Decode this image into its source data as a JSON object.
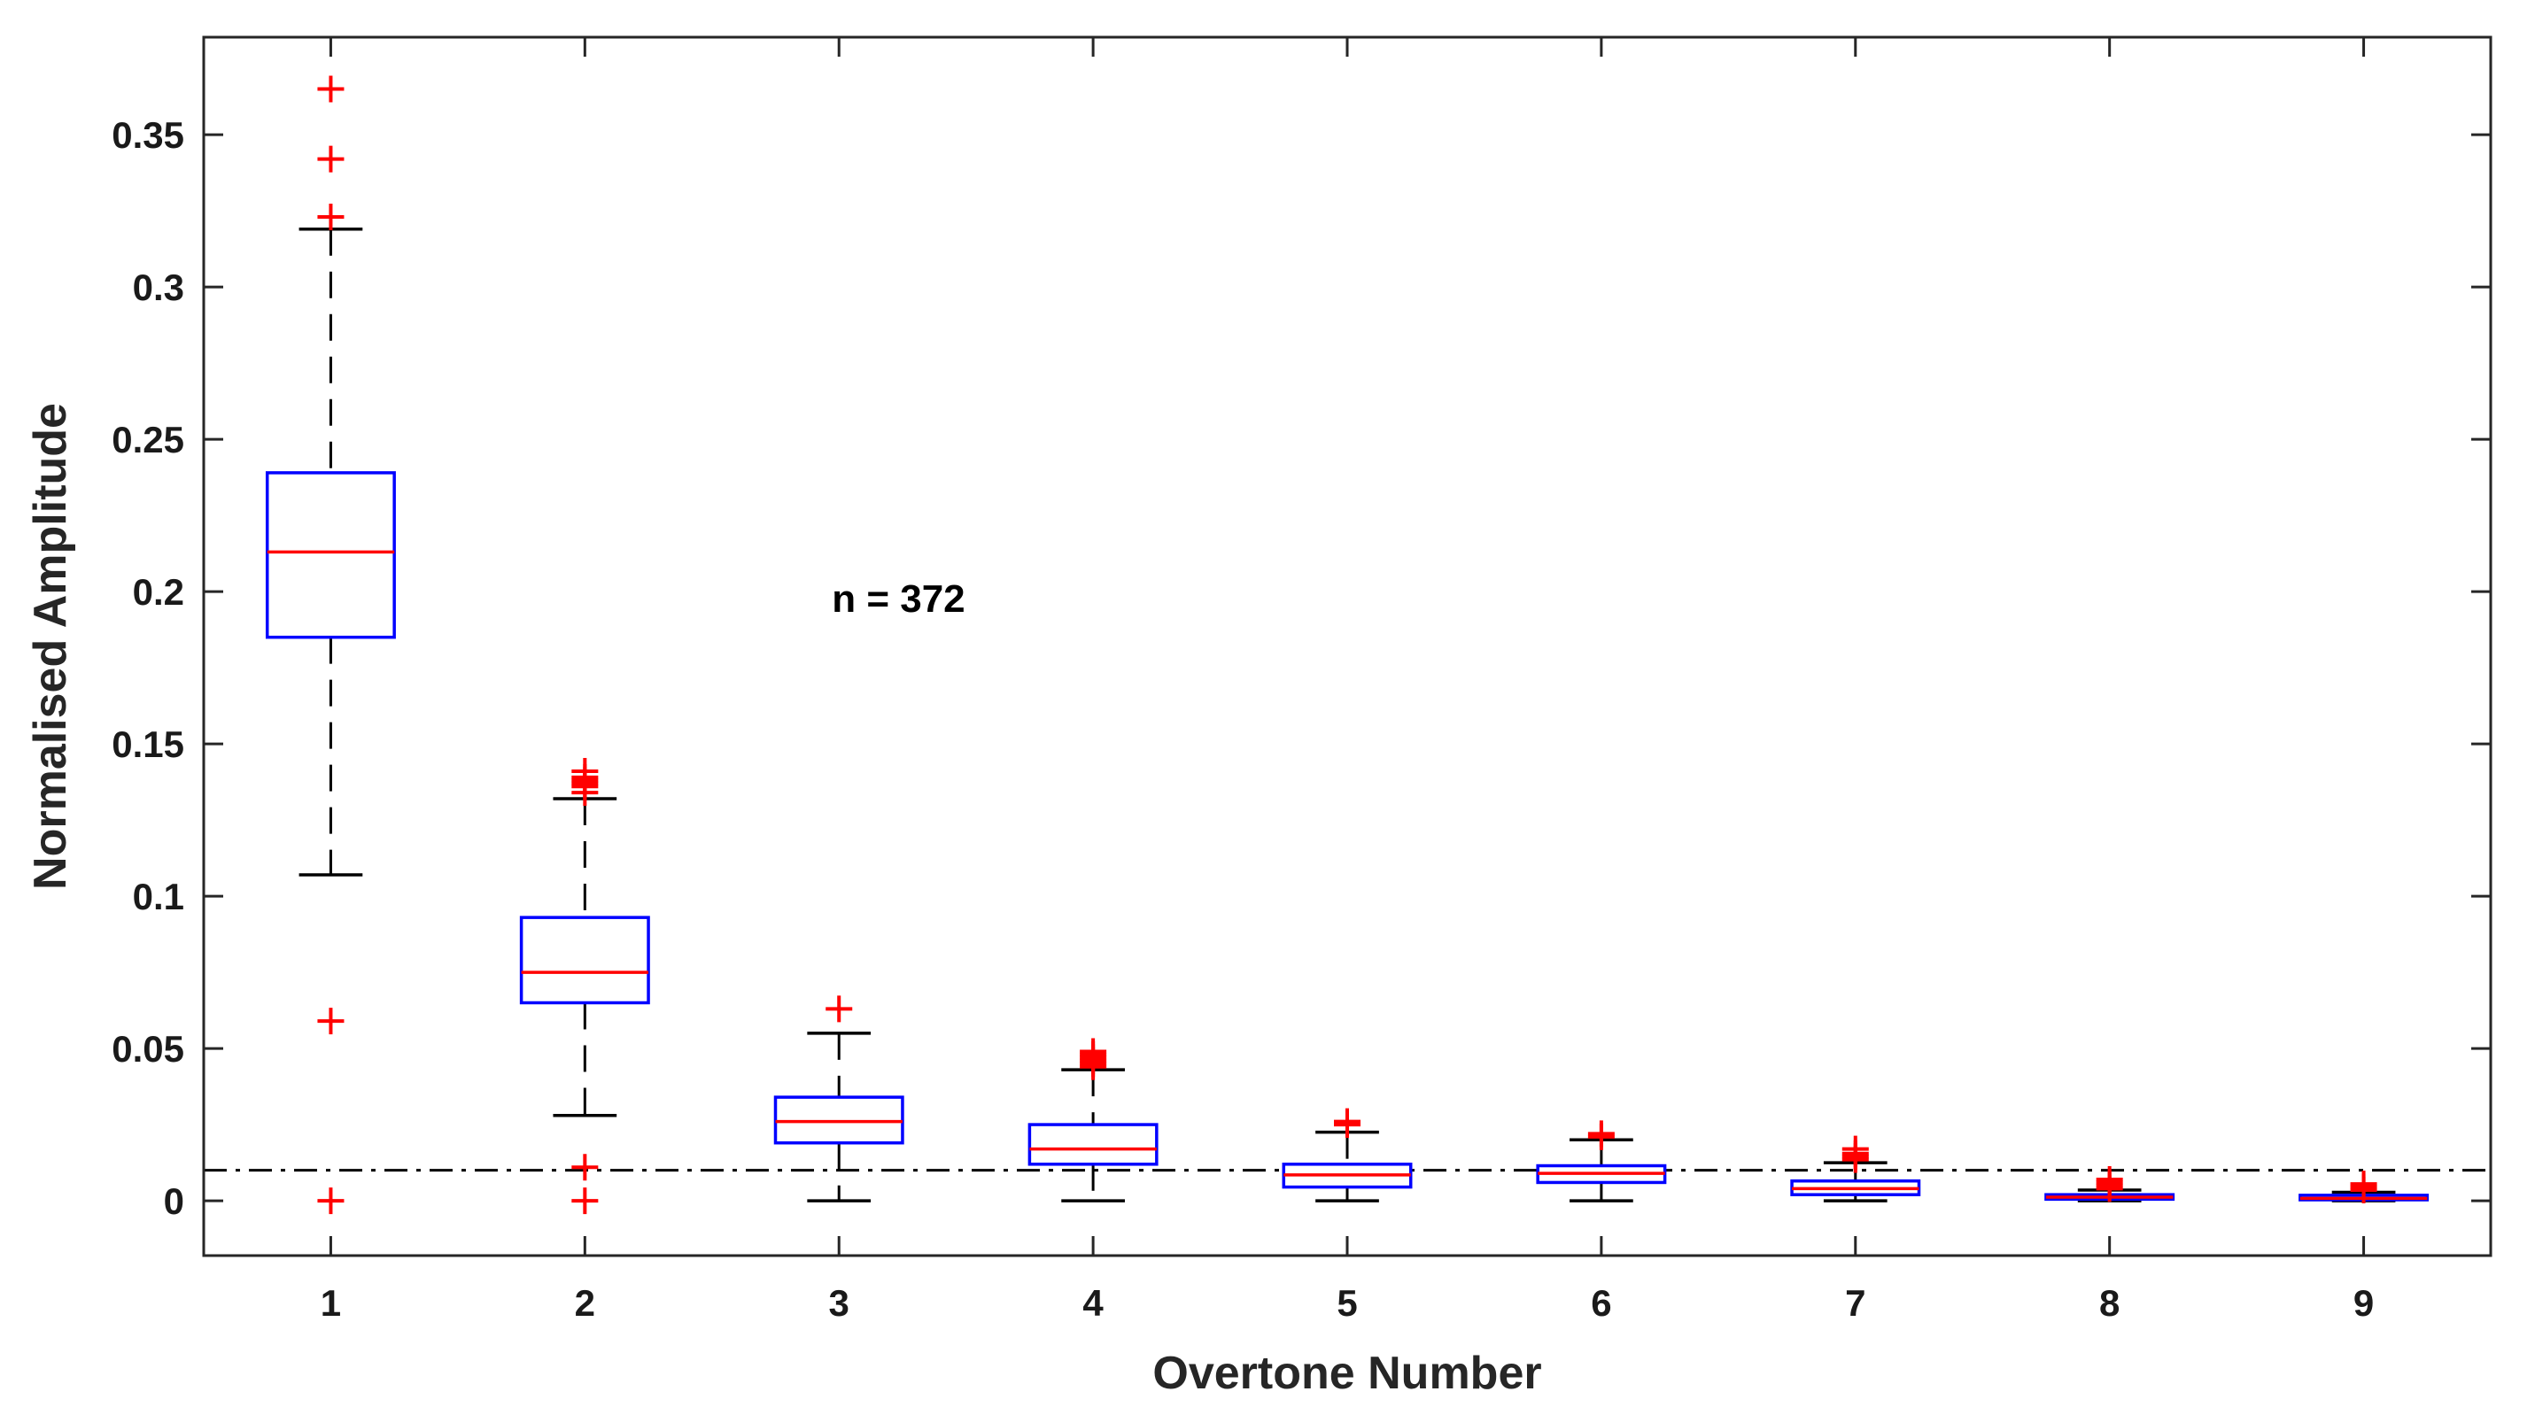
{
  "chart_data": {
    "type": "box",
    "xlabel": "Overtone Number",
    "ylabel": "Normalised Amplitude",
    "xlim": [
      0.5,
      9.5
    ],
    "ylim": [
      -0.018,
      0.382
    ],
    "categories": [
      "1",
      "2",
      "3",
      "4",
      "5",
      "6",
      "7",
      "8",
      "9"
    ],
    "y_ticks": [
      0,
      0.05,
      0.1,
      0.15,
      0.2,
      0.25,
      0.3,
      0.35
    ],
    "y_tick_labels": [
      "0",
      "0.05",
      "0.1",
      "0.15",
      "0.2",
      "0.25",
      "0.3",
      "0.35"
    ],
    "reference_line": {
      "y": 0.01,
      "style": "dash-dot",
      "color": "#000000"
    },
    "annotation": {
      "text": "n = 372",
      "x": 3.0,
      "y": 0.198
    },
    "box_color": "#0000ff",
    "median_color": "#ff0000",
    "outlier_color": "#ff0000",
    "whisker_color": "#000000",
    "boxes": [
      {
        "x": 1,
        "q1": 0.185,
        "median": 0.213,
        "q3": 0.239,
        "whisker_low": 0.107,
        "whisker_high": 0.319,
        "outliers": [
          0.365,
          0.342,
          0.323,
          0.059,
          0.0
        ]
      },
      {
        "x": 2,
        "q1": 0.065,
        "median": 0.075,
        "q3": 0.093,
        "whisker_low": 0.028,
        "whisker_high": 0.132,
        "outliers": [
          0.134,
          0.136,
          0.137,
          0.138,
          0.139,
          0.141,
          0.011,
          0.0
        ]
      },
      {
        "x": 3,
        "q1": 0.019,
        "median": 0.026,
        "q3": 0.034,
        "whisker_low": 0.0,
        "whisker_high": 0.055,
        "outliers": [
          0.063
        ]
      },
      {
        "x": 4,
        "q1": 0.012,
        "median": 0.017,
        "q3": 0.025,
        "whisker_low": 0.0,
        "whisker_high": 0.043,
        "outliers": [
          0.044,
          0.045,
          0.046,
          0.047,
          0.048,
          0.049
        ]
      },
      {
        "x": 5,
        "q1": 0.0045,
        "median": 0.0085,
        "q3": 0.012,
        "whisker_low": 0.0,
        "whisker_high": 0.0225,
        "outliers": [
          0.025,
          0.026
        ]
      },
      {
        "x": 6,
        "q1": 0.006,
        "median": 0.009,
        "q3": 0.0115,
        "whisker_low": 0.0,
        "whisker_high": 0.02,
        "outliers": [
          0.021,
          0.022
        ]
      },
      {
        "x": 7,
        "q1": 0.002,
        "median": 0.004,
        "q3": 0.0065,
        "whisker_low": 0.0,
        "whisker_high": 0.0125,
        "outliers": [
          0.0135,
          0.0145,
          0.0155,
          0.017
        ]
      },
      {
        "x": 8,
        "q1": 0.0005,
        "median": 0.0012,
        "q3": 0.002,
        "whisker_low": 0.0,
        "whisker_high": 0.0035,
        "outliers": [
          0.004,
          0.005,
          0.006,
          0.007
        ]
      },
      {
        "x": 9,
        "q1": 0.0003,
        "median": 0.0008,
        "q3": 0.0018,
        "whisker_low": 0.0,
        "whisker_high": 0.0028,
        "outliers": [
          0.0035,
          0.0045,
          0.0055
        ]
      }
    ]
  }
}
